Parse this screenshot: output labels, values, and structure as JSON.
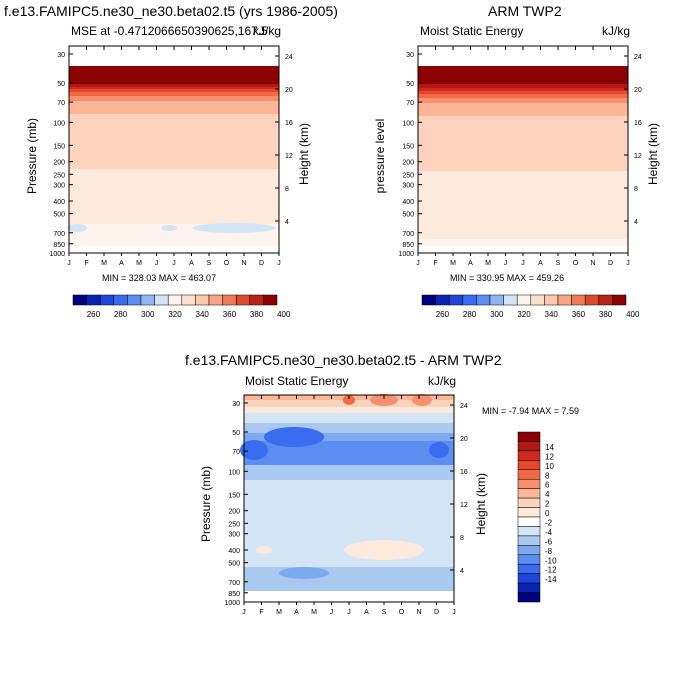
{
  "chart_data": [
    {
      "type": "heatmap",
      "title": "f.e13.FAMIPC5.ne30_ne30.beta02.t5 (yrs 1986-2005)",
      "subtitle_left": "MSE at -0.4712066650390625,167.5",
      "subtitle_right": "kJ/kg",
      "ylabel": "Pressure (mb)",
      "ylabel_right": "Height (km)",
      "x_ticks": [
        "J",
        "F",
        "M",
        "A",
        "M",
        "J",
        "J",
        "A",
        "S",
        "O",
        "N",
        "D",
        "J"
      ],
      "y_ticks": [
        30,
        50,
        70,
        100,
        150,
        200,
        250,
        300,
        400,
        500,
        700,
        850,
        1000
      ],
      "height_ticks": [
        24,
        20,
        16,
        12,
        8,
        4
      ],
      "stats": "MIN = 328.03 MAX = 463.07",
      "bands": [
        {
          "top": 20,
          "bottom": 38,
          "color": "#8b0000"
        },
        {
          "top": 38,
          "bottom": 41,
          "color": "#b11818"
        },
        {
          "top": 41,
          "bottom": 43,
          "color": "#d02a1e"
        },
        {
          "top": 43,
          "bottom": 46,
          "color": "#e6472c"
        },
        {
          "top": 46,
          "bottom": 50,
          "color": "#f26a43"
        },
        {
          "top": 50,
          "bottom": 55,
          "color": "#f79070"
        },
        {
          "top": 55,
          "bottom": 68,
          "color": "#fcb595"
        },
        {
          "top": 68,
          "bottom": 123,
          "color": "#fdd3bd"
        },
        {
          "top": 123,
          "bottom": 178,
          "color": "#feeadd"
        },
        {
          "top": 178,
          "bottom": 200,
          "color": "#fdf4ee"
        }
      ],
      "blobs": [
        {
          "cx": 8,
          "cy": 182,
          "rx": 10,
          "ry": 4,
          "color": "#d3e4f5"
        },
        {
          "cx": 100,
          "cy": 182,
          "rx": 8,
          "ry": 3,
          "color": "#d3e4f5"
        },
        {
          "cx": 165,
          "cy": 182,
          "rx": 42,
          "ry": 5,
          "color": "#d3e4f5"
        }
      ]
    },
    {
      "type": "heatmap",
      "title": "ARM TWP2",
      "subtitle_left": "Moist Static Energy",
      "subtitle_right": "kJ/kg",
      "ylabel": "pressure level",
      "ylabel_right": "Height (km)",
      "x_ticks": [
        "J",
        "F",
        "M",
        "A",
        "M",
        "J",
        "J",
        "A",
        "S",
        "O",
        "N",
        "D",
        "J"
      ],
      "y_ticks": [
        30,
        50,
        70,
        100,
        150,
        200,
        250,
        300,
        400,
        500,
        700,
        850,
        1000
      ],
      "height_ticks": [
        24,
        20,
        16,
        12,
        8,
        4
      ],
      "stats": "MIN = 330.95 MAX = 459.26",
      "bands": [
        {
          "top": 20,
          "bottom": 38,
          "color": "#8b0000"
        },
        {
          "top": 38,
          "bottom": 42,
          "color": "#b11818"
        },
        {
          "top": 42,
          "bottom": 45,
          "color": "#d02a1e"
        },
        {
          "top": 45,
          "bottom": 48,
          "color": "#e6472c"
        },
        {
          "top": 48,
          "bottom": 52,
          "color": "#f26a43"
        },
        {
          "top": 52,
          "bottom": 57,
          "color": "#f79070"
        },
        {
          "top": 57,
          "bottom": 70,
          "color": "#fcb595"
        },
        {
          "top": 70,
          "bottom": 125,
          "color": "#fdd3bd"
        },
        {
          "top": 125,
          "bottom": 193,
          "color": "#feeadd"
        },
        {
          "top": 193,
          "bottom": 200,
          "color": "#fdf4ee"
        }
      ],
      "blobs": []
    },
    {
      "type": "heatmap",
      "title": "f.e13.FAMIPC5.ne30_ne30.beta02.t5 - ARM TWP2",
      "subtitle_left": "Moist Static Energy",
      "subtitle_right": "kJ/kg",
      "ylabel": "Pressure (mb)",
      "ylabel_right": "Height (km)",
      "x_ticks": [
        "J",
        "F",
        "M",
        "A",
        "M",
        "J",
        "J",
        "A",
        "S",
        "O",
        "N",
        "D",
        "J"
      ],
      "y_ticks": [
        30,
        50,
        70,
        100,
        150,
        200,
        250,
        300,
        400,
        500,
        700,
        850,
        1000
      ],
      "height_ticks": [
        24,
        20,
        16,
        12,
        8,
        4
      ],
      "stats": "MIN =  -7.94 MAX =   7.59",
      "bands": [
        {
          "top": 0,
          "bottom": 5,
          "color": "#fcb595"
        },
        {
          "top": 5,
          "bottom": 12,
          "color": "#fdd3bd"
        },
        {
          "top": 12,
          "bottom": 18,
          "color": "#feeadd"
        },
        {
          "top": 18,
          "bottom": 28,
          "color": "#d3e4f5"
        },
        {
          "top": 28,
          "bottom": 38,
          "color": "#a9c9f0"
        },
        {
          "top": 38,
          "bottom": 46,
          "color": "#7ea9ec"
        },
        {
          "top": 46,
          "bottom": 70,
          "color": "#5b8df2"
        },
        {
          "top": 70,
          "bottom": 85,
          "color": "#a9c9f0"
        },
        {
          "top": 85,
          "bottom": 150,
          "color": "#d3e4f5"
        },
        {
          "top": 150,
          "bottom": 172,
          "color": "#d3e4f5"
        },
        {
          "top": 172,
          "bottom": 190,
          "color": "#a9c9f0"
        },
        {
          "top": 190,
          "bottom": 196,
          "color": "#a9c9f0"
        }
      ],
      "blobs": [
        {
          "cx": 50,
          "cy": 42,
          "rx": 30,
          "ry": 10,
          "color": "#3a6cf0"
        },
        {
          "cx": 10,
          "cy": 55,
          "rx": 14,
          "ry": 10,
          "color": "#3a6cf0"
        },
        {
          "cx": 195,
          "cy": 55,
          "rx": 10,
          "ry": 8,
          "color": "#3a6cf0"
        },
        {
          "cx": 105,
          "cy": 5,
          "rx": 6,
          "ry": 5,
          "color": "#f26a43"
        },
        {
          "cx": 140,
          "cy": 5,
          "rx": 14,
          "ry": 6,
          "color": "#f79070"
        },
        {
          "cx": 178,
          "cy": 5,
          "rx": 10,
          "ry": 6,
          "color": "#f79070"
        },
        {
          "cx": 140,
          "cy": 155,
          "rx": 40,
          "ry": 10,
          "color": "#feeadd"
        },
        {
          "cx": 60,
          "cy": 178,
          "rx": 25,
          "ry": 6,
          "color": "#7ea9ec"
        },
        {
          "cx": 20,
          "cy": 155,
          "rx": 8,
          "ry": 4,
          "color": "#feeadd"
        }
      ]
    }
  ],
  "colorbar_abs": {
    "colors": [
      "#000080",
      "#0a23b0",
      "#1e46d8",
      "#3a6cf0",
      "#5b8df2",
      "#8fb5f2",
      "#d3e4f5",
      "#fdf4ee",
      "#fde0d0",
      "#fdc7ac",
      "#f8a485",
      "#f07a58",
      "#dc4a2e",
      "#b82316",
      "#8b0000"
    ],
    "labels": [
      "260",
      "280",
      "300",
      "320",
      "340",
      "360",
      "380",
      "400"
    ]
  },
  "colorbar_diff": {
    "colors": [
      "#000080",
      "#0a23b0",
      "#1e46d8",
      "#3a6cf0",
      "#5b8df2",
      "#7ea9ec",
      "#a9c9f0",
      "#d3e4f5",
      "#ffffff",
      "#feeadd",
      "#fdd3bd",
      "#fcb595",
      "#f79070",
      "#f26a43",
      "#e6472c",
      "#d02a1e",
      "#b11818",
      "#8b0000"
    ],
    "labels": [
      "14",
      "12",
      "10",
      "8",
      "6",
      "4",
      "2",
      "0",
      "-2",
      "-4",
      "-6",
      "-8",
      "-10",
      "-12",
      "-14"
    ]
  }
}
